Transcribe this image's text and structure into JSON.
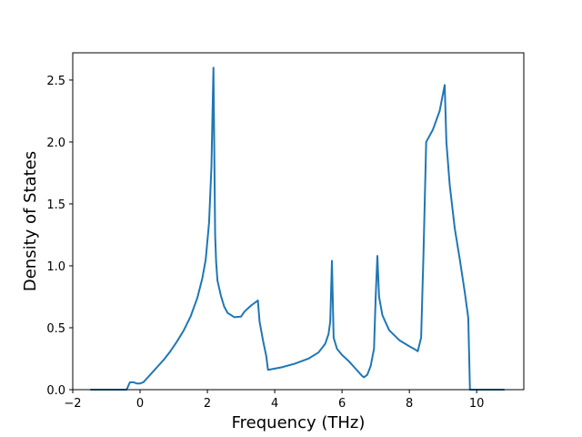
{
  "chart_data": {
    "type": "line",
    "title": "",
    "xlabel": "Frequency (THz)",
    "ylabel": "Density of States",
    "xlim": [
      -2.0,
      11.4
    ],
    "ylim": [
      0.0,
      2.72
    ],
    "xticks": [
      -2,
      0,
      2,
      4,
      6,
      8,
      10
    ],
    "xtick_labels": [
      "−2",
      "0",
      "2",
      "4",
      "6",
      "8",
      "10"
    ],
    "yticks": [
      0.0,
      0.5,
      1.0,
      1.5,
      2.0,
      2.5
    ],
    "ytick_labels": [
      "0.0",
      "0.5",
      "1.0",
      "1.5",
      "2.0",
      "2.5"
    ],
    "grid": false,
    "line_color": "#1f77b4",
    "series": [
      {
        "x": [
          -1.45,
          -0.4,
          -0.3,
          -0.2,
          -0.1,
          0.0,
          0.1,
          0.2,
          0.3,
          0.5,
          0.7,
          0.9,
          1.1,
          1.3,
          1.5,
          1.7,
          1.85,
          1.95,
          2.05,
          2.12,
          2.18,
          2.23,
          2.26,
          2.3,
          2.4,
          2.5,
          2.6,
          2.8,
          3.0,
          3.1,
          3.3,
          3.5,
          3.55,
          3.65,
          3.75,
          3.8,
          4.2,
          4.6,
          5.0,
          5.3,
          5.5,
          5.6,
          5.65,
          5.7,
          5.75,
          5.85,
          6.0,
          6.2,
          6.4,
          6.6,
          6.65,
          6.75,
          6.85,
          6.95,
          7.0,
          7.05,
          7.1,
          7.2,
          7.4,
          7.7,
          8.0,
          8.2,
          8.25,
          8.35,
          8.42,
          8.5,
          8.7,
          8.9,
          9.05,
          9.1,
          9.2,
          9.35,
          9.5,
          9.65,
          9.75,
          9.8,
          10.8
        ],
        "y": [
          0.0,
          0.0,
          0.06,
          0.06,
          0.05,
          0.05,
          0.06,
          0.09,
          0.12,
          0.18,
          0.24,
          0.31,
          0.39,
          0.48,
          0.59,
          0.74,
          0.9,
          1.05,
          1.35,
          1.8,
          2.6,
          1.25,
          1.03,
          0.88,
          0.76,
          0.67,
          0.62,
          0.585,
          0.59,
          0.63,
          0.68,
          0.72,
          0.55,
          0.4,
          0.27,
          0.16,
          0.18,
          0.21,
          0.25,
          0.3,
          0.37,
          0.45,
          0.55,
          1.04,
          0.42,
          0.33,
          0.28,
          0.23,
          0.17,
          0.11,
          0.1,
          0.12,
          0.19,
          0.33,
          0.75,
          1.08,
          0.75,
          0.6,
          0.48,
          0.4,
          0.35,
          0.32,
          0.31,
          0.42,
          1.1,
          2.0,
          2.1,
          2.25,
          2.46,
          2.0,
          1.65,
          1.3,
          1.05,
          0.78,
          0.58,
          0.0,
          0.0
        ]
      }
    ]
  }
}
